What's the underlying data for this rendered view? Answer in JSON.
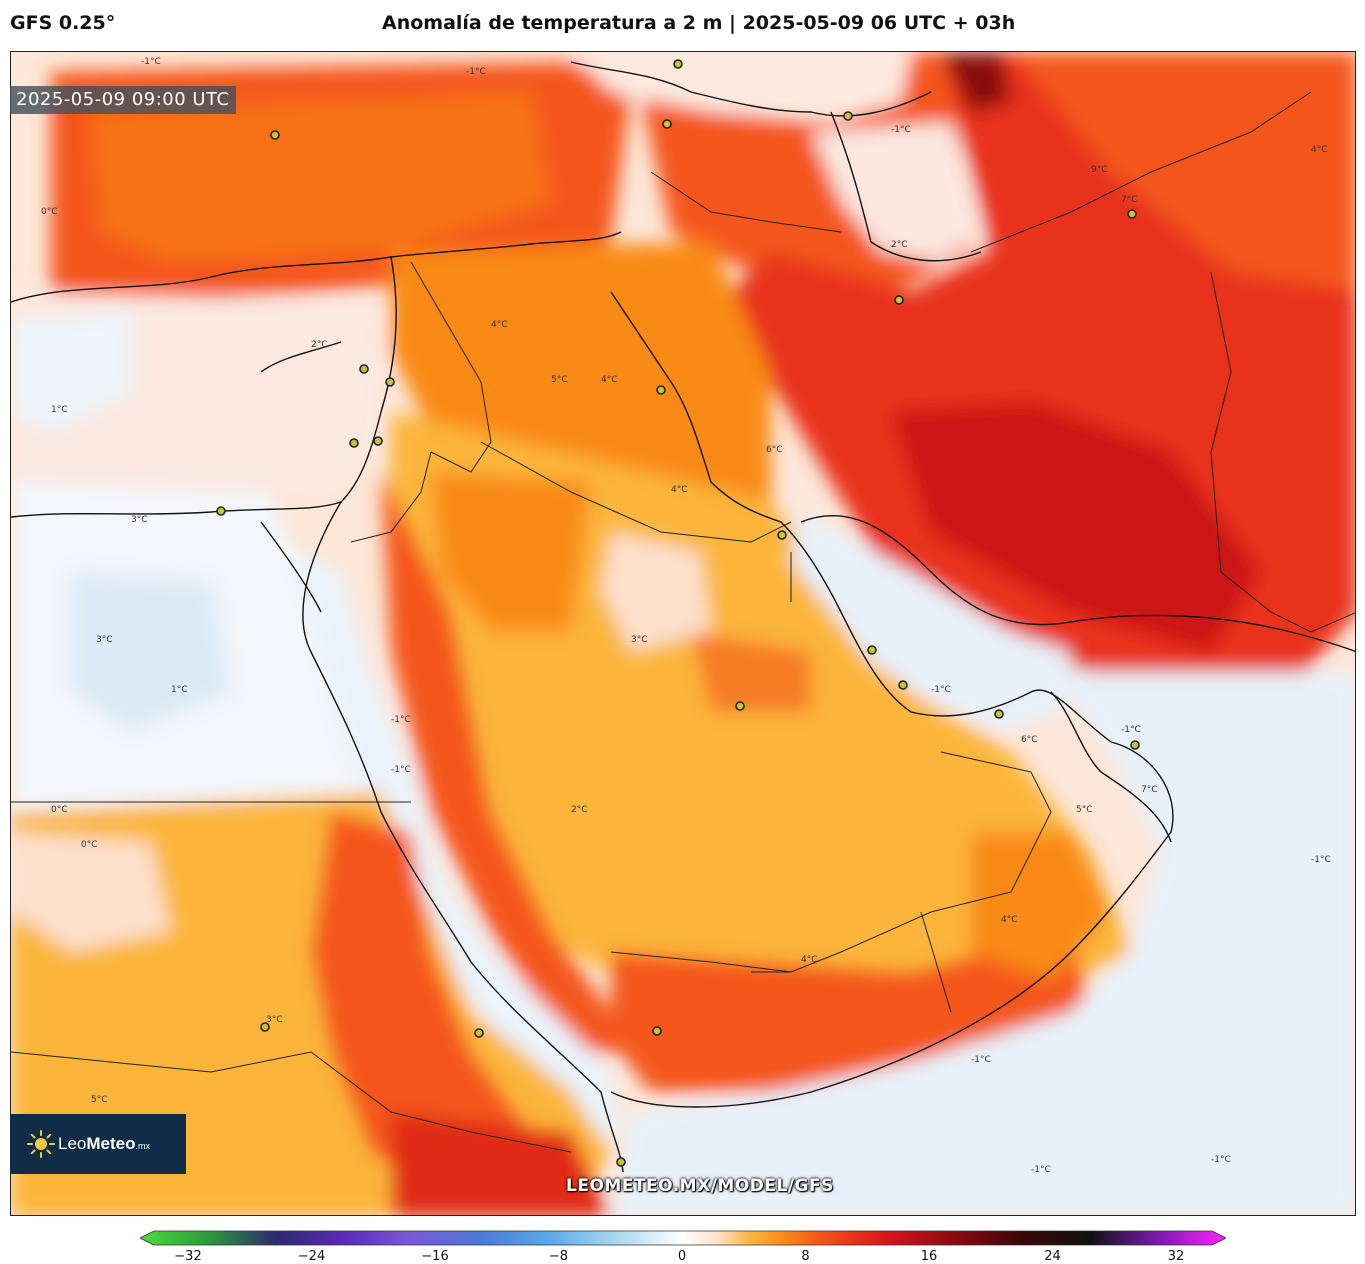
{
  "header": {
    "model": "GFS 0.25°",
    "title": "Anomalía de temperatura a 2 m | 2025-05-09 06 UTC + 03h"
  },
  "map": {
    "valid_time": "2025-05-09 09:00 UTC",
    "watermark": "LEOMETEO.MX/MODEL/GFS",
    "region": "Middle East / Arabian Peninsula",
    "contour_labels": [
      "-1°C",
      "0°C",
      "1°C",
      "2°C",
      "3°C",
      "4°C",
      "5°C",
      "6°C",
      "7°C",
      "9°C"
    ]
  },
  "logo": {
    "name_light": "Leo",
    "name_bold": "Meteo",
    "tld": ".mx"
  },
  "colorbar": {
    "ticks": [
      "−32",
      "−24",
      "−16",
      "−8",
      "0",
      "8",
      "16",
      "24",
      "32"
    ],
    "min": -32,
    "max": 32,
    "stops": [
      {
        "v": -32,
        "c": "#4ddc3c"
      },
      {
        "v": -28,
        "c": "#2d9a3a"
      },
      {
        "v": -24,
        "c": "#2d2a6e"
      },
      {
        "v": -20,
        "c": "#5a2ab8"
      },
      {
        "v": -16,
        "c": "#7a5ad8"
      },
      {
        "v": -12,
        "c": "#4a78d8"
      },
      {
        "v": -8,
        "c": "#58a8e8"
      },
      {
        "v": -4,
        "c": "#a8d8f0"
      },
      {
        "v": 0,
        "c": "#ffffff"
      },
      {
        "v": 2,
        "c": "#fde0cc"
      },
      {
        "v": 4,
        "c": "#fbb53a"
      },
      {
        "v": 6,
        "c": "#f98a16"
      },
      {
        "v": 8,
        "c": "#f4561a"
      },
      {
        "v": 12,
        "c": "#d8151a"
      },
      {
        "v": 16,
        "c": "#8a0a10"
      },
      {
        "v": 20,
        "c": "#3a0608"
      },
      {
        "v": 24,
        "c": "#111111"
      },
      {
        "v": 28,
        "c": "#7a1ab0"
      },
      {
        "v": 32,
        "c": "#ff22ff"
      }
    ]
  }
}
